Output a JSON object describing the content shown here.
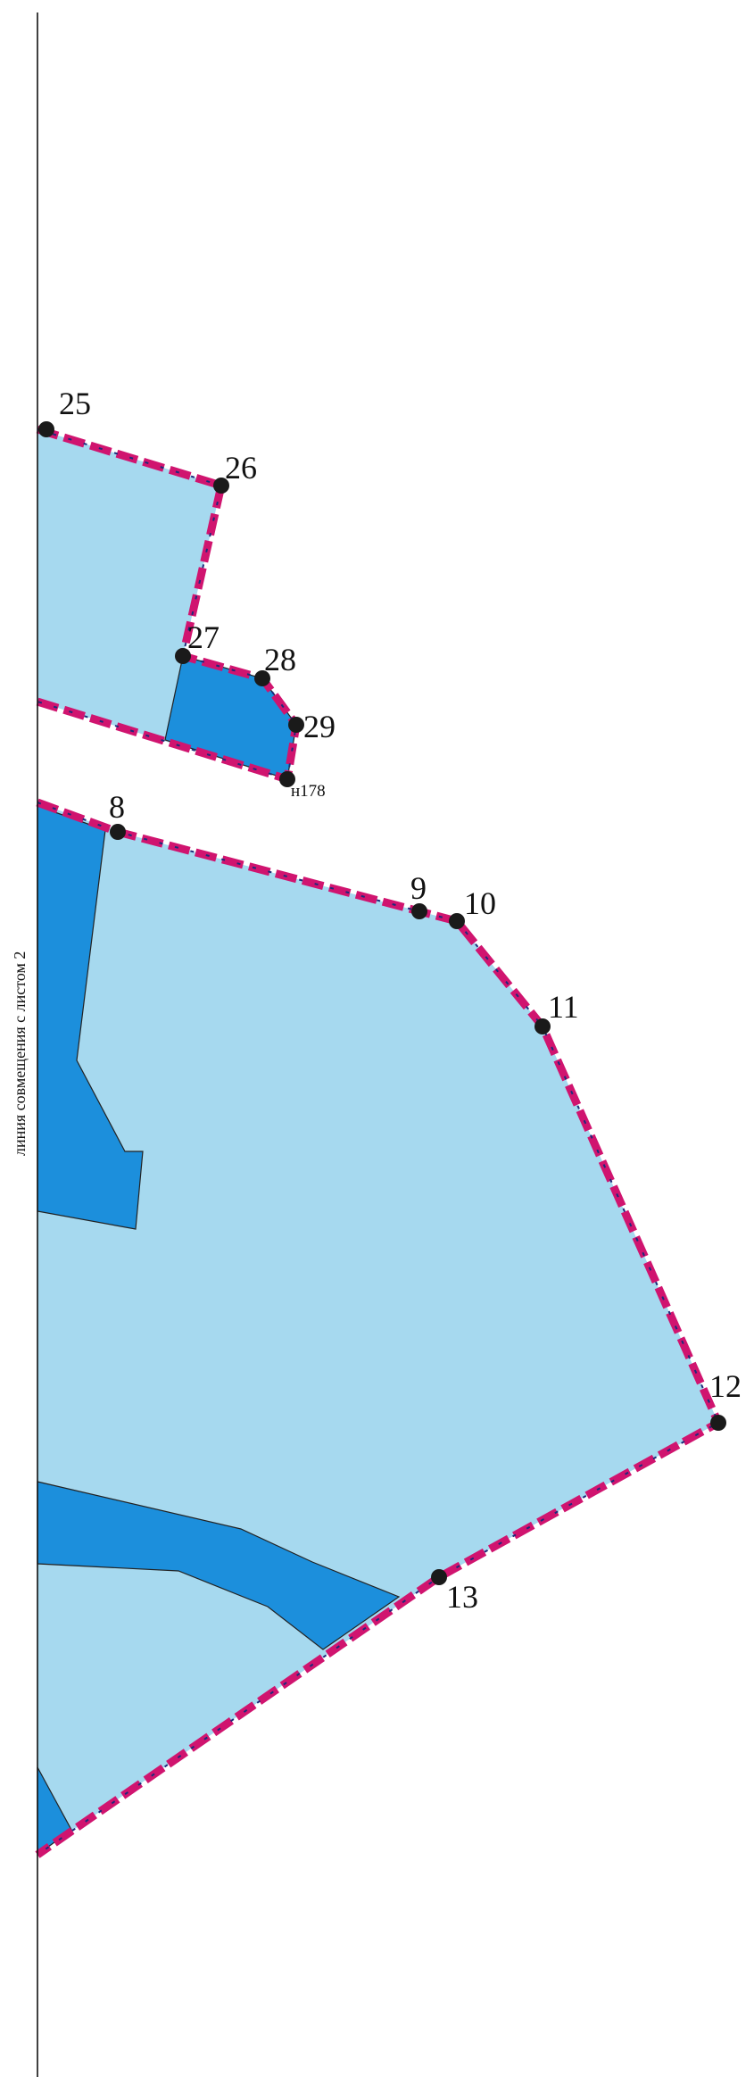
{
  "map": {
    "colors": {
      "parcel_fill": "#a6d9ef",
      "zone_fill": "#1c8fdc",
      "boundary_dash": "#d0146f",
      "boundary_core": "#1d2a7a",
      "point": "#1a1a1a",
      "edge_line": "#222222"
    },
    "side_line_label": "линия совмещения с листом 2",
    "points": [
      {
        "id": "p25",
        "label": "25"
      },
      {
        "id": "p26",
        "label": "26"
      },
      {
        "id": "p27",
        "label": "27"
      },
      {
        "id": "p28",
        "label": "28"
      },
      {
        "id": "p29",
        "label": "29"
      },
      {
        "id": "pn178",
        "label": "н178"
      },
      {
        "id": "p8",
        "label": "8"
      },
      {
        "id": "p9",
        "label": "9"
      },
      {
        "id": "p10",
        "label": "10"
      },
      {
        "id": "p11",
        "label": "11"
      },
      {
        "id": "p12",
        "label": "12"
      },
      {
        "id": "p13",
        "label": "13"
      }
    ]
  }
}
